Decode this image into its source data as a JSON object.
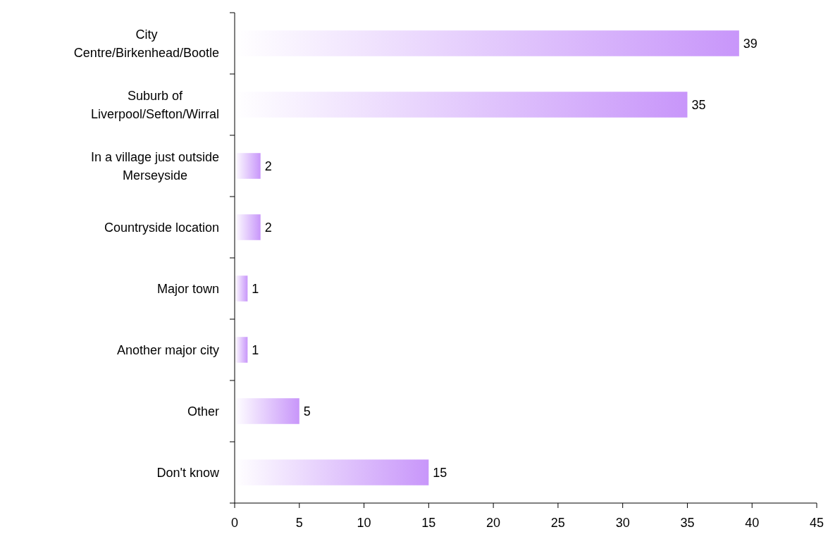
{
  "chart_data": {
    "type": "bar",
    "orientation": "horizontal",
    "categories": [
      "City Centre/Birkenhead/Bootle",
      "Suburb of Liverpool/Sefton/Wirral",
      "In a village just outside Merseyside",
      "Countryside location",
      "Major town",
      "Another major city",
      "Other",
      "Don't know"
    ],
    "values": [
      39,
      35,
      2,
      2,
      1,
      1,
      5,
      15
    ],
    "color": "#c896fa",
    "xlim": [
      0,
      45
    ],
    "xticks": [
      0,
      5,
      10,
      15,
      20,
      25,
      30,
      35,
      40,
      45
    ],
    "data_labels": true
  }
}
